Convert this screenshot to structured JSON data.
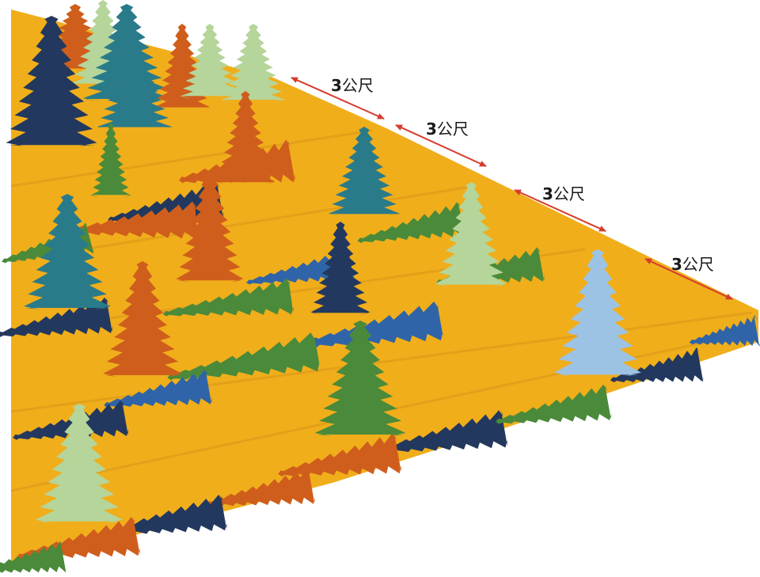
{
  "diagram": {
    "colors": {
      "ground": "#F0AE1B",
      "arrow": "#D63C2E",
      "label": "#1A1A1A",
      "tree_palette": {
        "navy": "#23385E",
        "teal": "#2A7B8A",
        "orange": "#CF5E1C",
        "sage": "#B5D59A",
        "green": "#4A8A3A",
        "blue": "#2F64A8",
        "light_blue": "#9DC3E4"
      }
    },
    "spacing": [
      {
        "number": "3",
        "unit": "公尺"
      },
      {
        "number": "3",
        "unit": "公尺"
      },
      {
        "number": "3",
        "unit": "公尺"
      },
      {
        "number": "3",
        "unit": "公尺"
      }
    ]
  }
}
